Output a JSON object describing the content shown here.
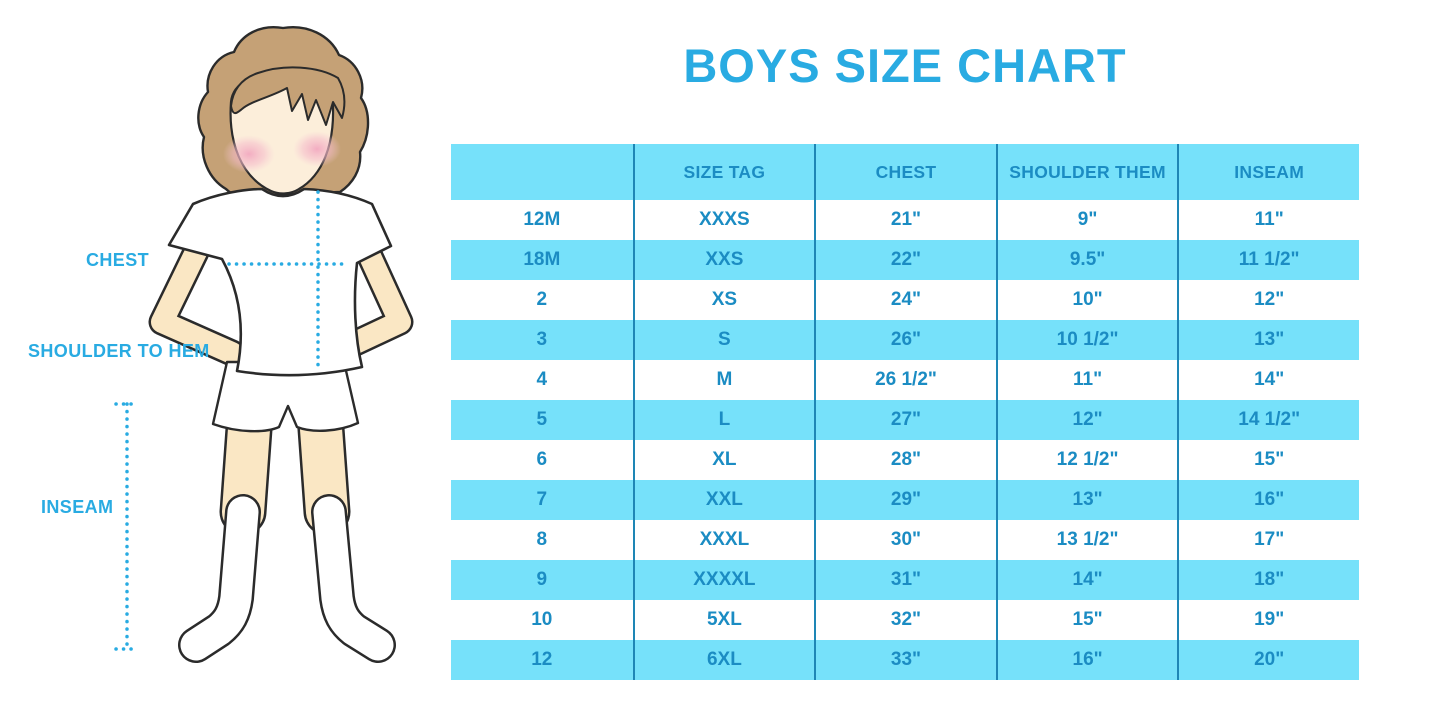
{
  "title": "BOYS SIZE CHART",
  "figure": {
    "description": "boy-in-white-tshirt-shorts-and-knee-socks",
    "labels": {
      "chest": "CHEST",
      "shoulder_to_hem": "SHOULDER TO HEM",
      "inseam": "INSEAM"
    }
  },
  "colors": {
    "accent_blue": "#29ABE2",
    "row_blue": "#76E1FA",
    "table_text_blue": "#1B8CC3",
    "divider_blue": "#1E86B5",
    "skin": "#FAE7C4",
    "hair": "#C5A176",
    "blush": "#F2A9C0"
  },
  "chart_data": {
    "type": "table",
    "title": "BOYS SIZE CHART",
    "columns": [
      "",
      "SIZE TAG",
      "CHEST",
      "SHOULDER THEM",
      "INSEAM"
    ],
    "rows": [
      [
        "12M",
        "XXXS",
        "21\"",
        "9\"",
        "11\""
      ],
      [
        "18M",
        "XXS",
        "22\"",
        "9.5\"",
        "11 1/2\""
      ],
      [
        "2",
        "XS",
        "24\"",
        "10\"",
        "12\""
      ],
      [
        "3",
        "S",
        "26\"",
        "10 1/2\"",
        "13\""
      ],
      [
        "4",
        "M",
        "26 1/2\"",
        "11\"",
        "14\""
      ],
      [
        "5",
        "L",
        "27\"",
        "12\"",
        "14 1/2\""
      ],
      [
        "6",
        "XL",
        "28\"",
        "12 1/2\"",
        "15\""
      ],
      [
        "7",
        "XXL",
        "29\"",
        "13\"",
        "16\""
      ],
      [
        "8",
        "XXXL",
        "30\"",
        "13 1/2\"",
        "17\""
      ],
      [
        "9",
        "XXXXL",
        "31\"",
        "14\"",
        "18\""
      ],
      [
        "10",
        "5XL",
        "32\"",
        "15\"",
        "19\""
      ],
      [
        "12",
        "6XL",
        "33\"",
        "16\"",
        "20\""
      ]
    ],
    "row_striping": "white/blue alternating, header blue, vertical dividers only"
  }
}
